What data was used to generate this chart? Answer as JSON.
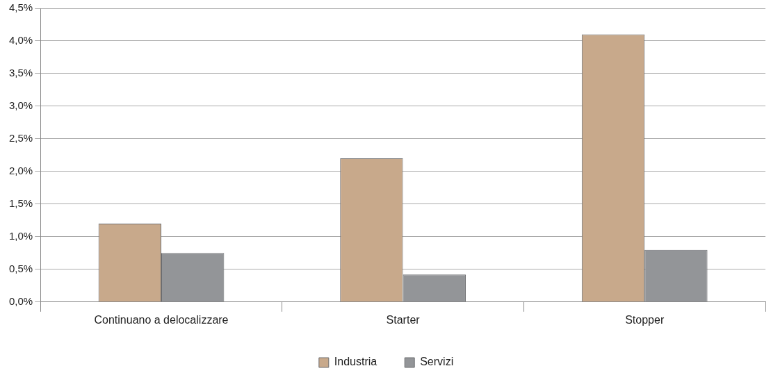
{
  "chart_data": {
    "type": "bar",
    "categories": [
      "Continuano a delocalizzare",
      "Starter",
      "Stopper"
    ],
    "series": [
      {
        "name": "Industria",
        "color": "#c8a98b",
        "values": [
          1.2,
          2.2,
          4.1
        ]
      },
      {
        "name": "Servizi",
        "color": "#939598",
        "values": [
          0.75,
          0.42,
          0.8
        ]
      }
    ],
    "ylim": [
      0,
      4.5
    ],
    "yticks": [
      {
        "value": 0,
        "label": "0,0%"
      },
      {
        "value": 0.5,
        "label": "0,5%"
      },
      {
        "value": 1,
        "label": "1,0%"
      },
      {
        "value": 1.5,
        "label": "1,5%"
      },
      {
        "value": 2,
        "label": "2,0%"
      },
      {
        "value": 2.5,
        "label": "2,5%"
      },
      {
        "value": 3,
        "label": "3,0%"
      },
      {
        "value": 3.5,
        "label": "3,5%"
      },
      {
        "value": 4,
        "label": "4,0%"
      },
      {
        "value": 4.5,
        "label": "4,5%"
      }
    ],
    "grid": "y",
    "legend": "bottom"
  }
}
